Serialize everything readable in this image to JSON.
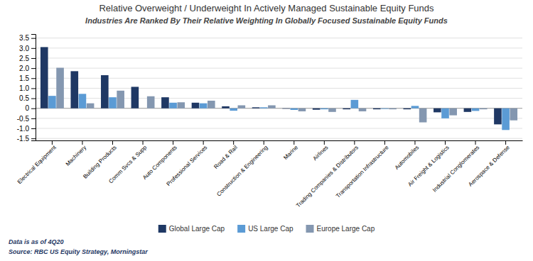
{
  "chart_data": {
    "type": "bar",
    "title": "Relative Overweight / Underweight In Actively Managed Sustainable Equity Funds",
    "subtitle": "Industries Are Ranked By Their Relative Weighting In Globally Focused Sustainable Equity Funds",
    "categories": [
      "Electrical Equipment",
      "Machinery",
      "Building Products",
      "Comm Svcs & Supp",
      "Auto Components",
      "Professional Services",
      "Road & Rail",
      "Construction & Engineering",
      "Marine",
      "Airlines",
      "Trading Companies & Distributors",
      "Transportation Infrastructure",
      "Automobiles",
      "Air Freight & Logistics",
      "Industrial Conglomerates",
      "Aerospace & Defense"
    ],
    "series": [
      {
        "name": "Global Large Cap",
        "color": "#1f3864",
        "values": [
          3.05,
          1.85,
          1.65,
          1.07,
          0.55,
          0.28,
          0.1,
          0.05,
          -0.02,
          -0.07,
          -0.05,
          -0.05,
          -0.05,
          -0.2,
          -0.18,
          -0.8
        ]
      },
      {
        "name": "US Large Cap",
        "color": "#5b9bd5",
        "values": [
          0.62,
          0.72,
          0.55,
          0.0,
          0.28,
          0.25,
          -0.12,
          0.05,
          -0.08,
          -0.05,
          0.42,
          -0.03,
          0.12,
          -0.5,
          -0.13,
          -1.08
        ]
      },
      {
        "name": "Europe Large Cap",
        "color": "#8497b0",
        "values": [
          2.02,
          0.25,
          0.88,
          0.6,
          0.3,
          0.38,
          0.15,
          0.15,
          -0.15,
          -0.18,
          -0.15,
          -0.05,
          -0.7,
          -0.35,
          -0.05,
          -0.6
        ]
      }
    ],
    "ylim": [
      -1.6,
      3.7
    ],
    "yticks": [
      -1.5,
      {
        "value": -1.0,
        "label": "-1.0"
      },
      -0.5,
      0,
      0.5,
      {
        "value": 1.0,
        "label": "1.0"
      },
      1.5,
      {
        "value": 2.0,
        "label": "2.0"
      },
      2.5,
      {
        "value": 3.0,
        "label": "3.0"
      },
      3.5
    ],
    "grid": true,
    "legend": "bottom",
    "annotations": [
      "Data is as of 4Q20",
      "Source: RBC US Equity Strategy, Morningstar"
    ]
  }
}
